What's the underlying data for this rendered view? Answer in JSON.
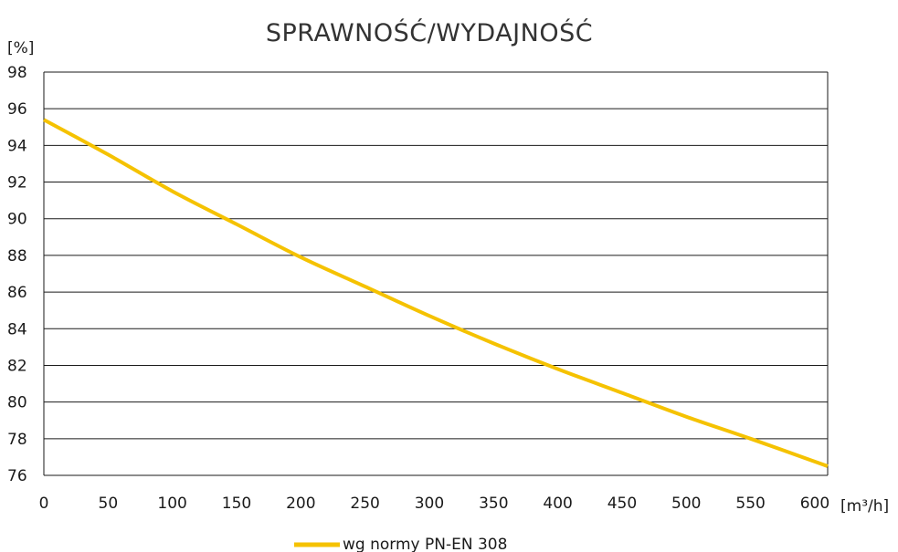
{
  "chart_data": {
    "type": "line",
    "title": "SPRAWNOŚĆ/WYDAJNOŚĆ",
    "xlabel": "[m³/h]",
    "ylabel": "[%]",
    "xlim": [
      0,
      610
    ],
    "ylim": [
      76,
      98
    ],
    "x_ticks": [
      0,
      50,
      100,
      150,
      200,
      250,
      300,
      350,
      400,
      450,
      500,
      550,
      600
    ],
    "y_ticks": [
      76,
      78,
      80,
      82,
      84,
      86,
      88,
      90,
      92,
      94,
      96,
      98
    ],
    "grid": "horizontal",
    "legend_position": "bottom-center",
    "series": [
      {
        "name": "wg normy PN-EN 308",
        "color": "#f5c200",
        "x": [
          0,
          50,
          100,
          150,
          200,
          250,
          300,
          350,
          400,
          450,
          500,
          550,
          610
        ],
        "y": [
          95.4,
          93.5,
          91.5,
          89.7,
          87.9,
          86.3,
          84.7,
          83.2,
          81.8,
          80.5,
          79.2,
          78.0,
          76.5
        ]
      }
    ]
  }
}
